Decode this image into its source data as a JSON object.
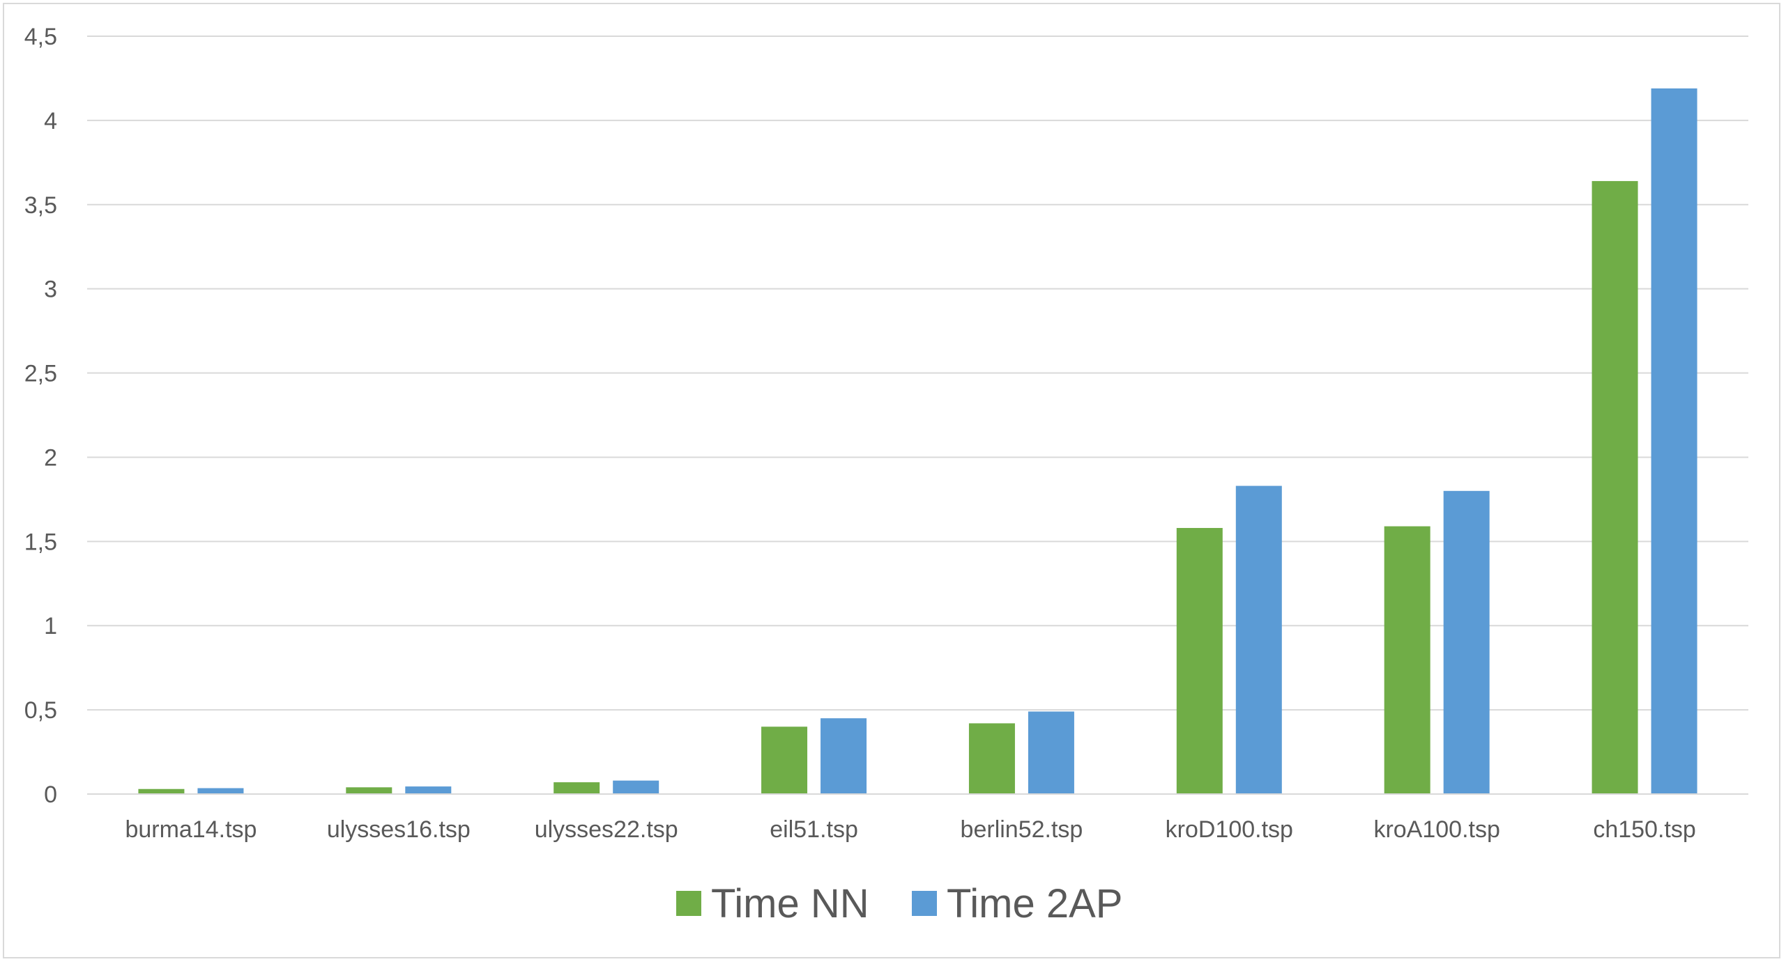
{
  "chart_data": {
    "type": "bar",
    "title": "",
    "xlabel": "",
    "ylabel": "",
    "categories": [
      "burma14.tsp",
      "ulysses16.tsp",
      "ulysses22.tsp",
      "eil51.tsp",
      "berlin52.tsp",
      "kroD100.tsp",
      "kroA100.tsp",
      "ch150.tsp"
    ],
    "series": [
      {
        "name": "Time NN",
        "color": "#70ad47",
        "values": [
          0.03,
          0.04,
          0.07,
          0.4,
          0.42,
          1.58,
          1.59,
          3.64
        ]
      },
      {
        "name": "Time 2AP",
        "color": "#5b9bd5",
        "values": [
          0.035,
          0.045,
          0.08,
          0.45,
          0.49,
          1.83,
          1.8,
          4.19
        ]
      }
    ],
    "ylim": [
      0,
      4.5
    ],
    "yticks": [
      0,
      0.5,
      1,
      1.5,
      2,
      2.5,
      3,
      3.5,
      4,
      4.5
    ],
    "ytick_labels": [
      "0",
      "0,5",
      "1",
      "1,5",
      "2",
      "2,5",
      "3",
      "3,5",
      "4",
      "4,5"
    ],
    "grid": true,
    "legend_position": "bottom"
  }
}
